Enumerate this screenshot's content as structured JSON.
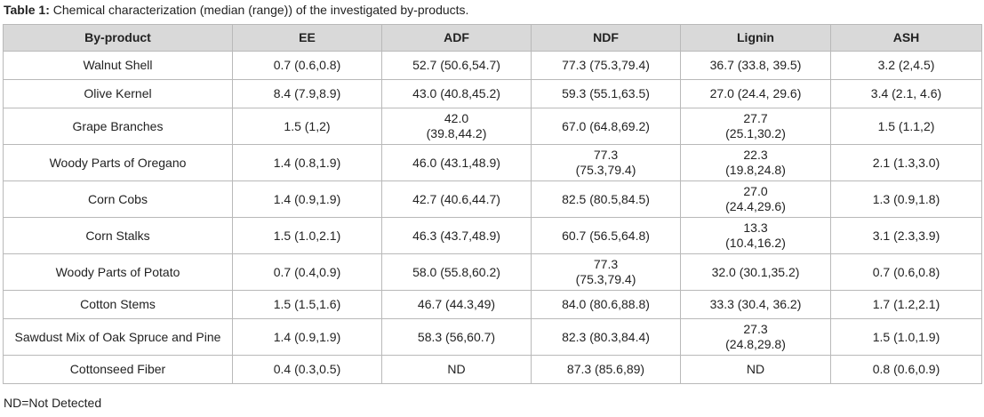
{
  "caption": {
    "label": "Table 1:",
    "text": "Chemical characterization (median (range)) of the investigated by-products."
  },
  "table": {
    "headers": [
      "By-product",
      "EE",
      "ADF",
      "NDF",
      "Lignin",
      "ASH"
    ],
    "rows": [
      {
        "byproduct": "Walnut Shell",
        "ee": [
          "0.7 (0.6,0.8)"
        ],
        "adf": [
          "52.7 (50.6,54.7)"
        ],
        "ndf": [
          "77.3 (75.3,79.4)"
        ],
        "lignin": [
          "36.7 (33.8, 39.5)"
        ],
        "ash": [
          "3.2 (2,4.5)"
        ]
      },
      {
        "byproduct": "Olive Kernel",
        "ee": [
          "8.4 (7.9,8.9)"
        ],
        "adf": [
          "43.0 (40.8,45.2)"
        ],
        "ndf": [
          "59.3 (55.1,63.5)"
        ],
        "lignin": [
          "27.0 (24.4, 29.6)"
        ],
        "ash": [
          "3.4 (2.1, 4.6)"
        ]
      },
      {
        "byproduct": "Grape Branches",
        "ee": [
          "1.5 (1,2)"
        ],
        "adf": [
          "42.0",
          "(39.8,44.2)"
        ],
        "ndf": [
          "67.0 (64.8,69.2)"
        ],
        "lignin": [
          "27.7",
          "(25.1,30.2)"
        ],
        "ash": [
          "1.5 (1.1,2)"
        ]
      },
      {
        "byproduct": "Woody Parts of Oregano",
        "ee": [
          "1.4 (0.8,1.9)"
        ],
        "adf": [
          "46.0 (43.1,48.9)"
        ],
        "ndf": [
          "77.3",
          "(75.3,79.4)"
        ],
        "lignin": [
          "22.3",
          "(19.8,24.8)"
        ],
        "ash": [
          "2.1 (1.3,3.0)"
        ]
      },
      {
        "byproduct": "Corn Cobs",
        "ee": [
          "1.4 (0.9,1.9)"
        ],
        "adf": [
          "42.7 (40.6,44.7)"
        ],
        "ndf": [
          "82.5 (80.5,84.5)"
        ],
        "lignin": [
          "27.0",
          "(24.4,29.6)"
        ],
        "ash": [
          "1.3 (0.9,1.8)"
        ]
      },
      {
        "byproduct": "Corn Stalks",
        "ee": [
          "1.5 (1.0,2.1)"
        ],
        "adf": [
          "46.3 (43.7,48.9)"
        ],
        "ndf": [
          "60.7 (56.5,64.8)"
        ],
        "lignin": [
          "13.3",
          "(10.4,16.2)"
        ],
        "ash": [
          "3.1 (2.3,3.9)"
        ]
      },
      {
        "byproduct": "Woody Parts of Potato",
        "ee": [
          "0.7 (0.4,0.9)"
        ],
        "adf": [
          "58.0 (55.8,60.2)"
        ],
        "ndf": [
          "77.3",
          "(75.3,79.4)"
        ],
        "lignin": [
          "32.0 (30.1,35.2)"
        ],
        "ash": [
          "0.7 (0.6,0.8)"
        ]
      },
      {
        "byproduct": "Cotton Stems",
        "ee": [
          "1.5 (1.5,1.6)"
        ],
        "adf": [
          "46.7 (44.3,49)"
        ],
        "ndf": [
          "84.0 (80.6,88.8)"
        ],
        "lignin": [
          "33.3 (30.4, 36.2)"
        ],
        "ash": [
          "1.7 (1.2,2.1)"
        ]
      },
      {
        "byproduct": "Sawdust Mix of Oak Spruce and Pine",
        "ee": [
          "1.4 (0.9,1.9)"
        ],
        "adf": [
          "58.3 (56,60.7)"
        ],
        "ndf": [
          "82.3 (80.3,84.4)"
        ],
        "lignin": [
          "27.3",
          "(24.8,29.8)"
        ],
        "ash": [
          "1.5 (1.0,1.9)"
        ]
      },
      {
        "byproduct": "Cottonseed Fiber",
        "ee": [
          "0.4 (0.3,0.5)"
        ],
        "adf": [
          "ND"
        ],
        "ndf": [
          "87.3 (85.6,89)"
        ],
        "lignin": [
          "ND"
        ],
        "ash": [
          "0.8 (0.6,0.9)"
        ]
      }
    ]
  },
  "footnote": "ND=Not Detected"
}
